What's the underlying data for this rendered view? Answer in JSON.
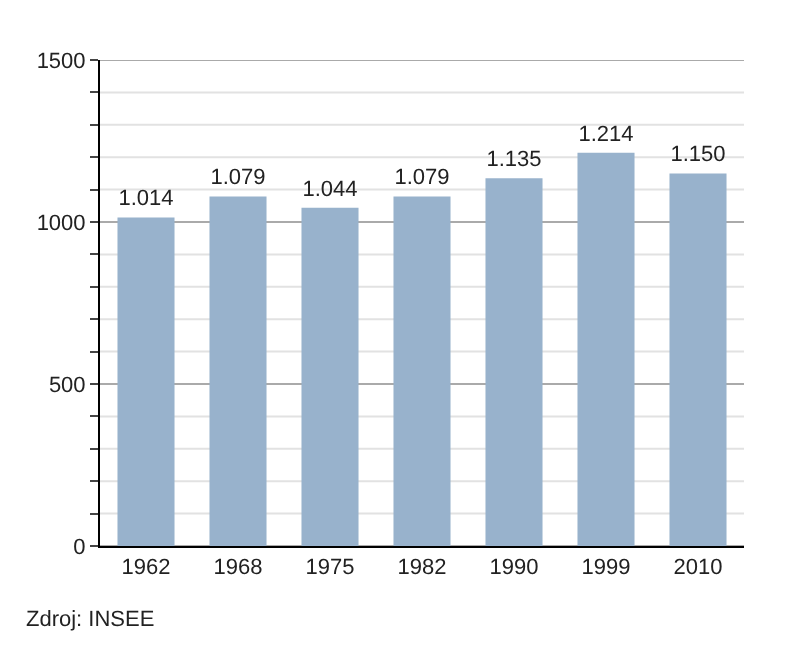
{
  "chart_data": {
    "type": "bar",
    "categories": [
      "1962",
      "1968",
      "1975",
      "1982",
      "1990",
      "1999",
      "2010"
    ],
    "values": [
      1014,
      1079,
      1044,
      1079,
      1135,
      1214,
      1150
    ],
    "value_labels": [
      "1.014",
      "1.079",
      "1.044",
      "1.079",
      "1.135",
      "1.214",
      "1.150"
    ],
    "color": "#98b2cc",
    "ylim": [
      0,
      1500
    ],
    "yticks": [
      0,
      {
        "value": 100,
        "label": null
      },
      {
        "value": 200,
        "label": null
      },
      {
        "value": 300,
        "label": null
      },
      {
        "value": 400,
        "label": null
      },
      500,
      {
        "value": 600,
        "label": null
      },
      {
        "value": 700,
        "label": null
      },
      {
        "value": 800,
        "label": null
      },
      {
        "value": 900,
        "label": null
      },
      1000,
      {
        "value": 1100,
        "label": null
      },
      {
        "value": 1200,
        "label": null
      },
      {
        "value": 1300,
        "label": null
      },
      {
        "value": 1400,
        "label": null
      },
      1500
    ],
    "grid": true,
    "legend": false,
    "annotations": [
      "Zdroj: INSEE"
    ]
  }
}
